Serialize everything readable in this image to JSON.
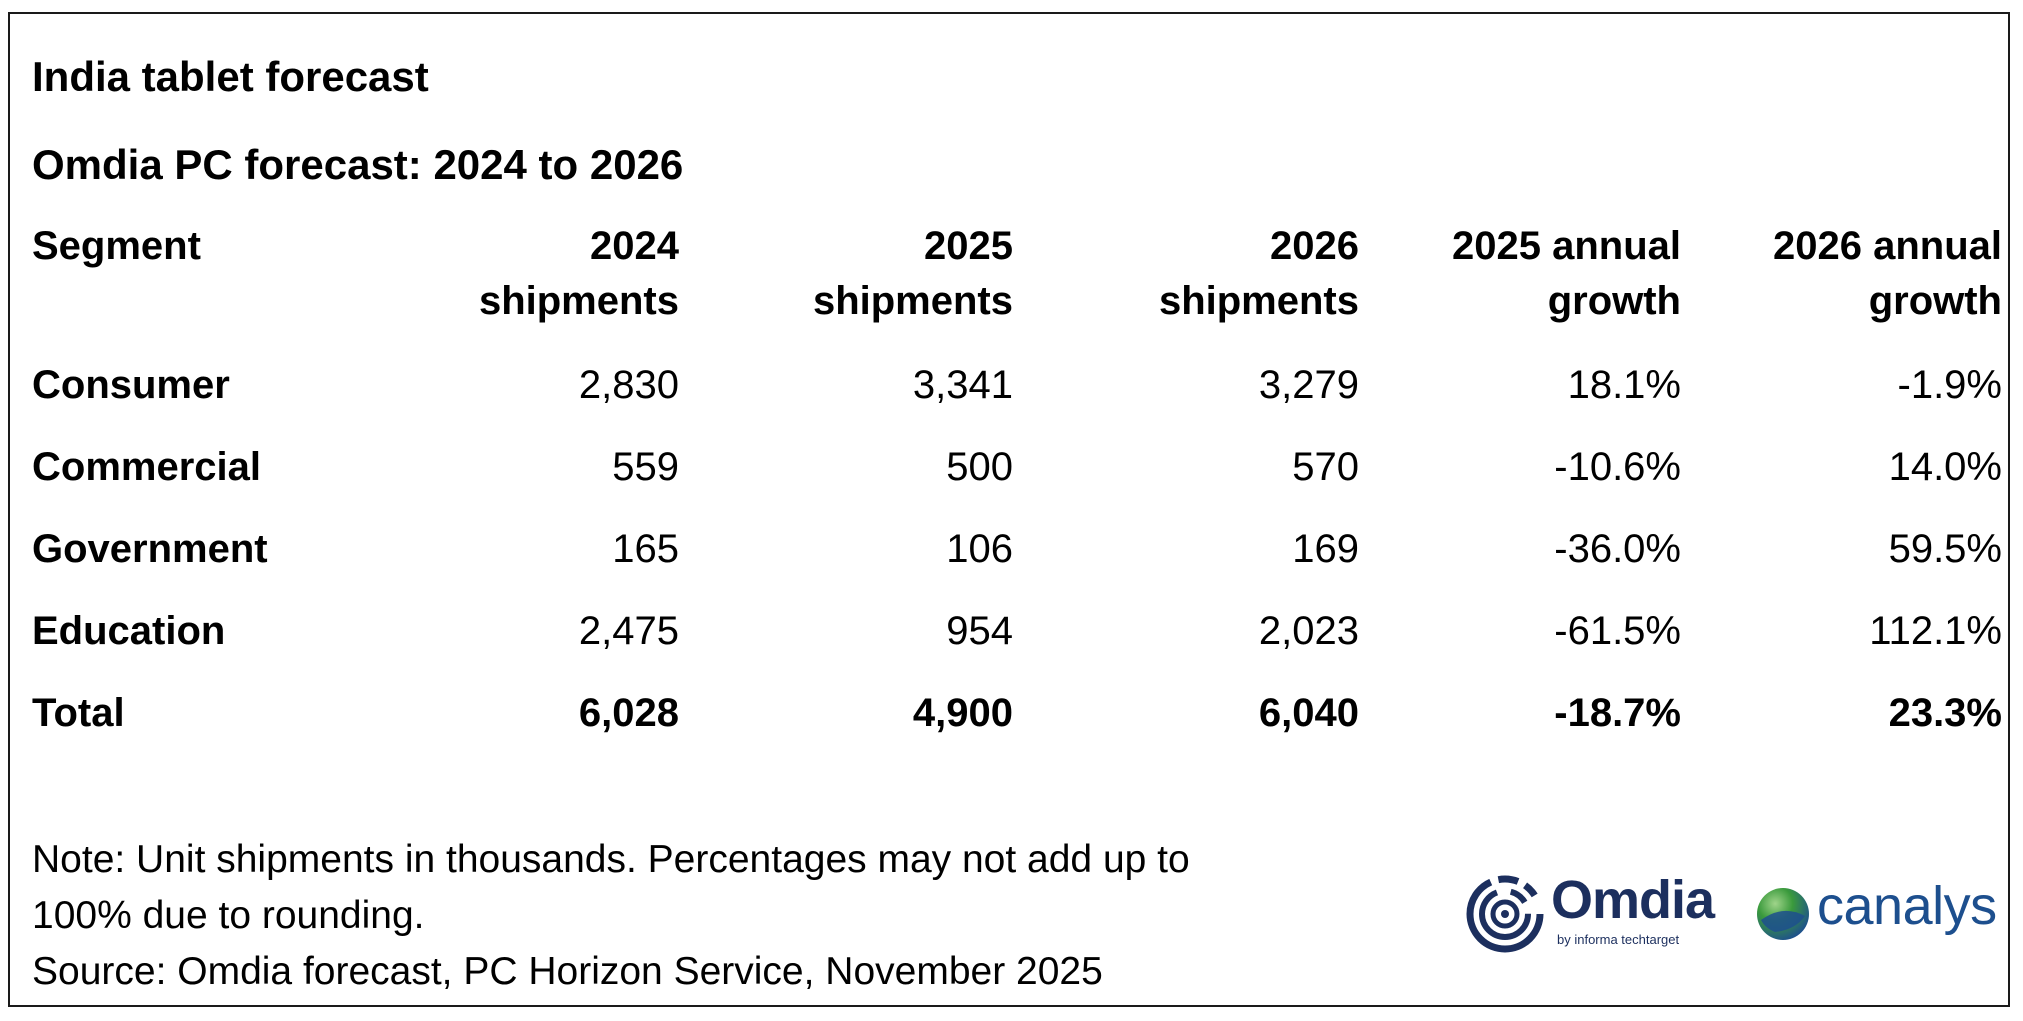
{
  "chart_data": {
    "type": "table",
    "title": "India tablet forecast",
    "subtitle": "Omdia PC forecast: 2024 to 2026",
    "columns": [
      "Segment",
      "2024 shipments",
      "2025 shipments",
      "2026 shipments",
      "2025 annual growth",
      "2026 annual growth"
    ],
    "header_lines": [
      [
        "Segment",
        ""
      ],
      [
        "2024",
        "shipments"
      ],
      [
        "2025",
        "shipments"
      ],
      [
        "2026",
        "shipments"
      ],
      [
        "2025 annual",
        "growth"
      ],
      [
        "2026 annual",
        "growth"
      ]
    ],
    "rows": [
      [
        "Consumer",
        "2,830",
        "3,341",
        "3,279",
        "18.1%",
        "-1.9%"
      ],
      [
        "Commercial",
        "559",
        "500",
        "570",
        "-10.6%",
        "14.0%"
      ],
      [
        "Government",
        "165",
        "106",
        "169",
        "-36.0%",
        "59.5%"
      ],
      [
        "Education",
        "2,475",
        "954",
        "2,023",
        "-61.5%",
        "112.1%"
      ],
      [
        "Total",
        "6,028",
        "4,900",
        "6,040",
        "-18.7%",
        "23.3%"
      ]
    ]
  },
  "notes": {
    "line1": "Note: Unit shipments in thousands. Percentages may not add up to",
    "line2": "100% due to rounding.",
    "source": "Source: Omdia forecast, PC Horizon Service, November 2025"
  },
  "logos": {
    "omdia": "Omdia",
    "omdia_tagline": "by informa techtarget",
    "canalys": "canalys"
  },
  "colors": {
    "omdia_navy": "#1c2f5e",
    "canalys_blue": "#1d4f8e",
    "canalys_green": "#3a9a3c"
  }
}
